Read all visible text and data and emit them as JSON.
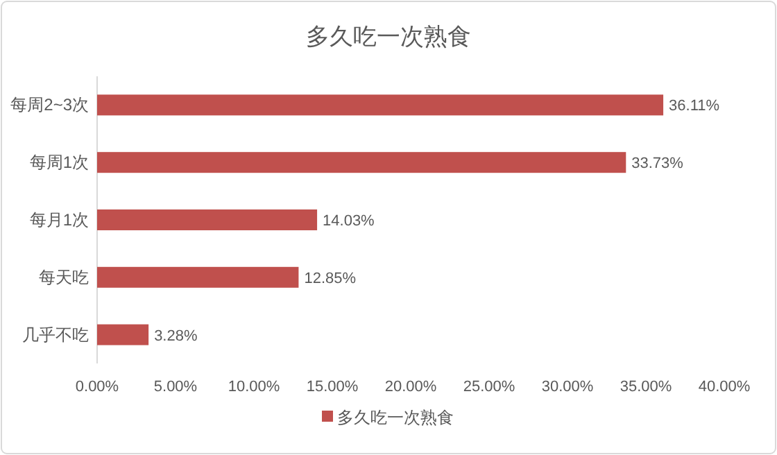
{
  "chart_data": {
    "type": "bar",
    "orientation": "horizontal",
    "title": "多久吃一次熟食",
    "categories": [
      "每周2~3次",
      "每周1次",
      "每月1次",
      "每天吃",
      "几乎不吃"
    ],
    "series": [
      {
        "name": "多久吃一次熟食",
        "color": "#c0504d",
        "values": [
          36.11,
          33.73,
          14.03,
          12.85,
          3.28
        ],
        "value_labels": [
          "36.11%",
          "33.73%",
          "14.03%",
          "12.85%",
          "3.28%"
        ]
      }
    ],
    "xlim": [
      0,
      40
    ],
    "xticks": [
      {
        "value": 0,
        "label": "0.00%"
      },
      {
        "value": 5,
        "label": "5.00%"
      },
      {
        "value": 10,
        "label": "10.00%"
      },
      {
        "value": 15,
        "label": "15.00%"
      },
      {
        "value": 20,
        "label": "20.00%"
      },
      {
        "value": 25,
        "label": "25.00%"
      },
      {
        "value": 30,
        "label": "30.00%"
      },
      {
        "value": 35,
        "label": "35.00%"
      },
      {
        "value": 40,
        "label": "40.00%"
      }
    ],
    "legend": "bottom"
  }
}
